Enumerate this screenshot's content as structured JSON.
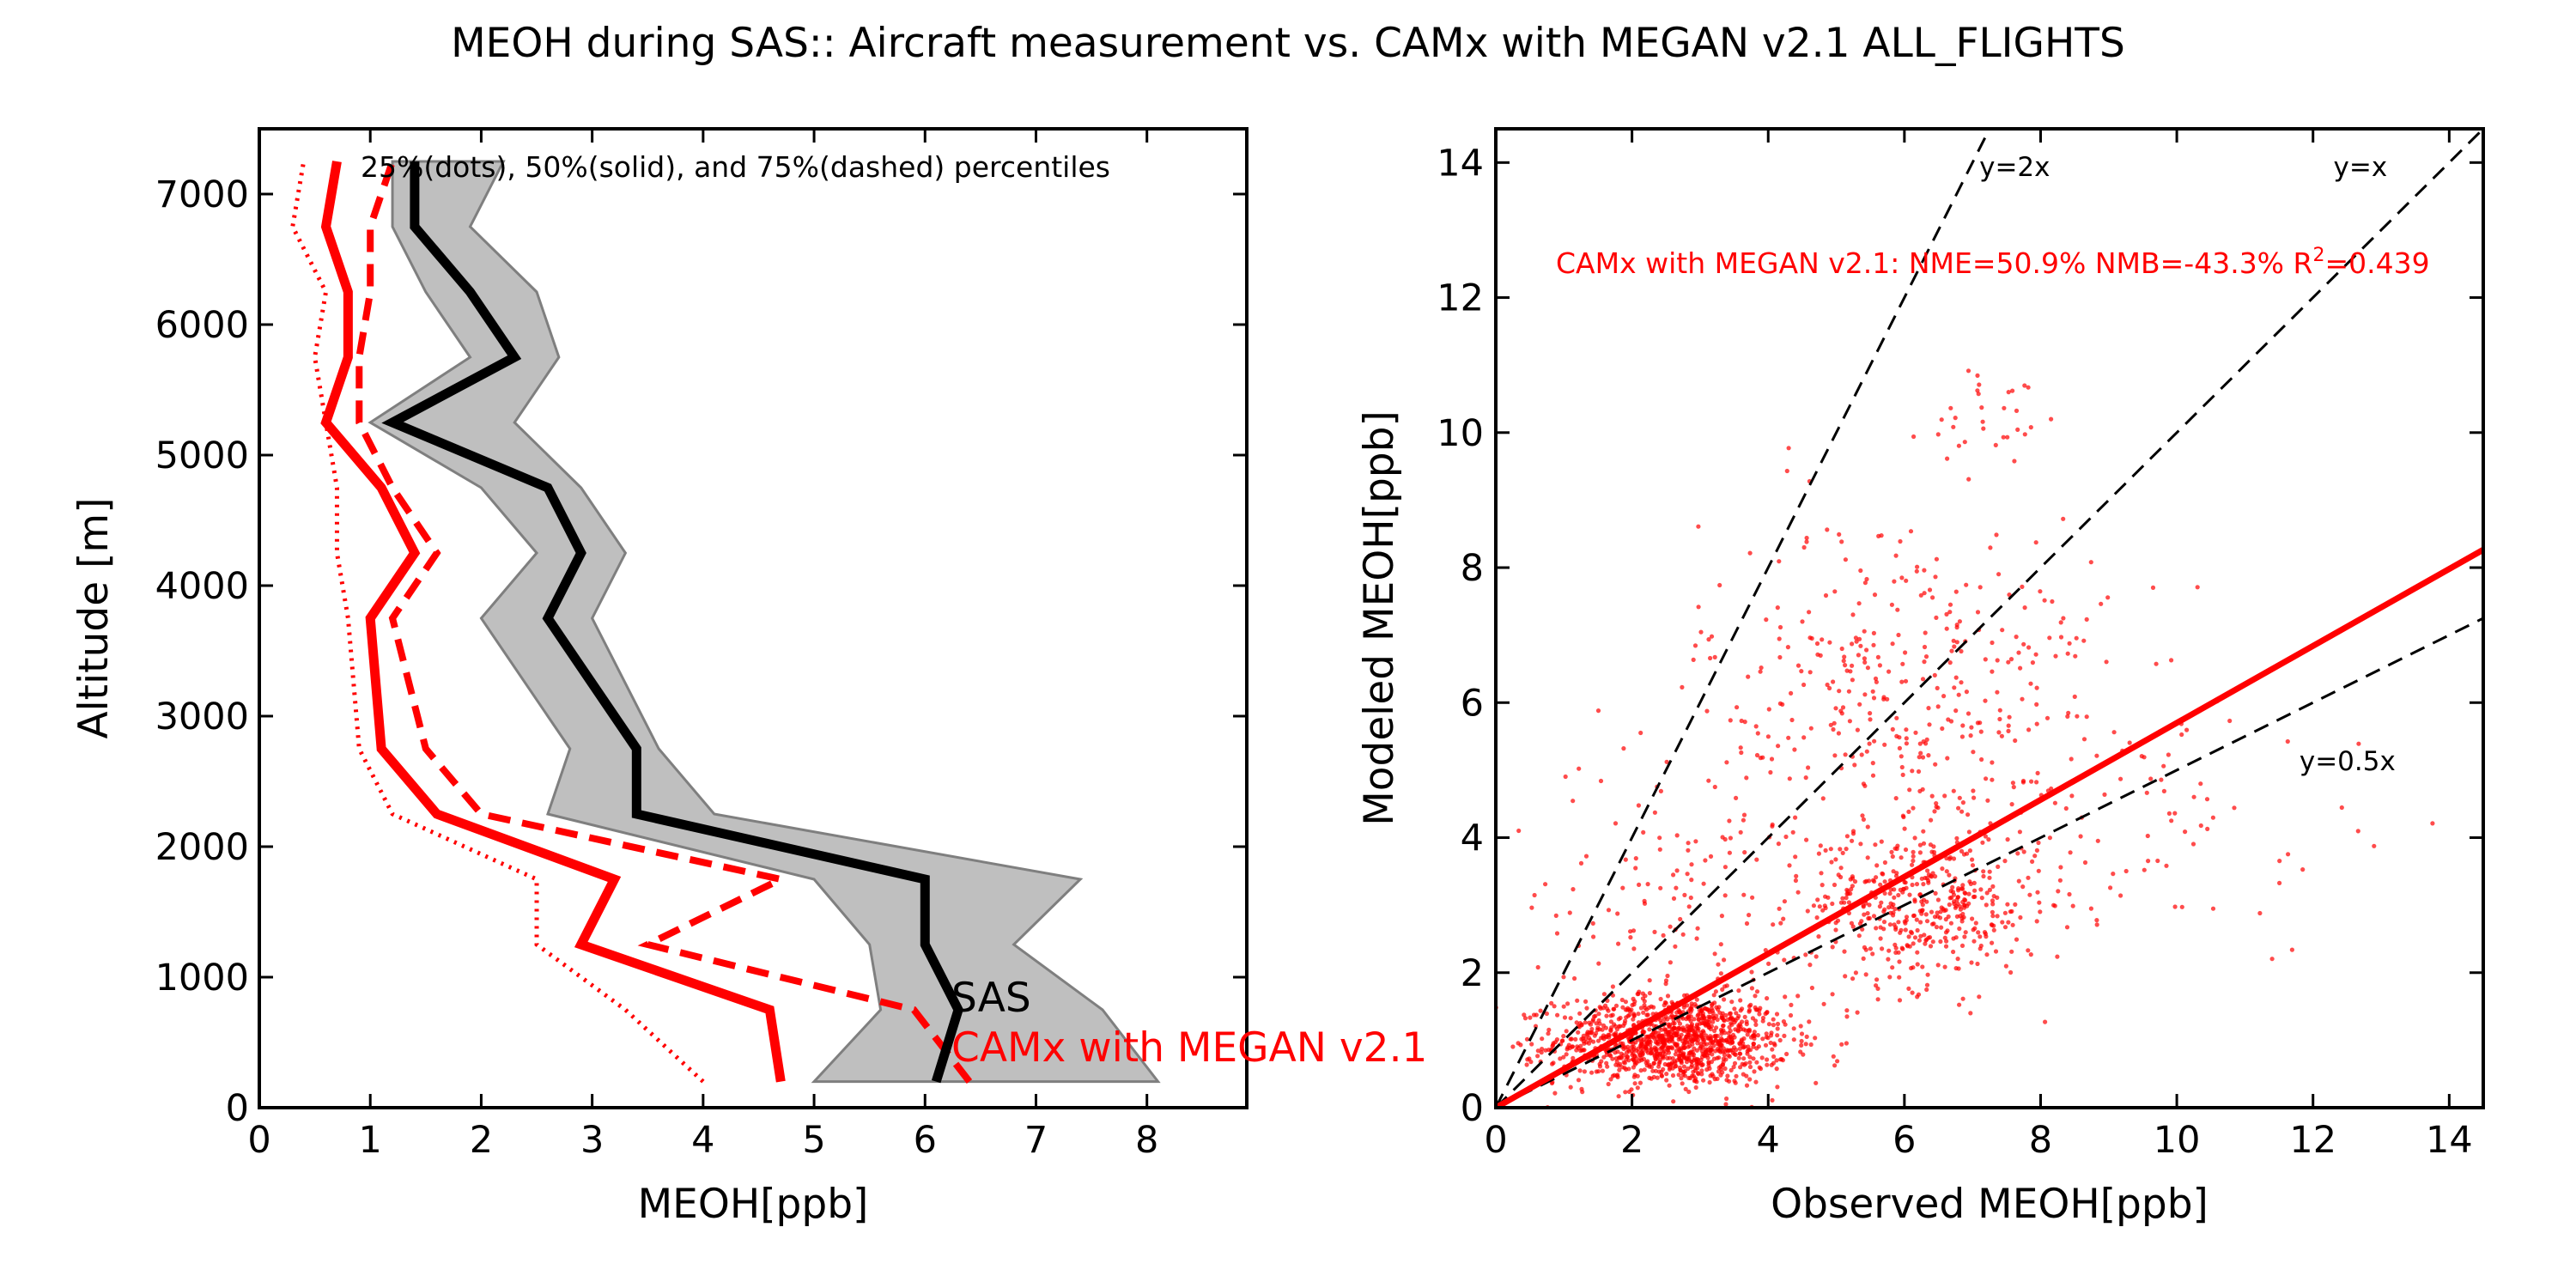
{
  "figure": {
    "title": "MEOH during SAS:: Aircraft measurement vs. CAMx with MEGAN v2.1 ALL_FLIGHTS"
  },
  "colors": {
    "model": "#ff0000",
    "observation": "#000000",
    "obs_band": "#bfbfbf",
    "obs_band_edge": "#7f7f7f",
    "reference_lines": "#000000"
  },
  "chart_data": [
    {
      "type": "line",
      "panel": "left",
      "xlabel": "MEOH[ppb]",
      "ylabel": "Altitude [m]",
      "xlim": [
        0,
        8.9
      ],
      "ylim": [
        0,
        7500
      ],
      "xticks": [
        0,
        1,
        2,
        3,
        4,
        5,
        6,
        7,
        8
      ],
      "yticks": [
        0,
        1000,
        2000,
        3000,
        4000,
        5000,
        6000,
        7000
      ],
      "annotation": "25%(dots), 50%(solid), and 75%(dashed) percentiles",
      "labels": {
        "obs": "SAS",
        "model": "CAMx with MEGAN v2.1"
      },
      "obs_band": {
        "p25": [
          [
            5.0,
            200
          ],
          [
            5.6,
            750
          ],
          [
            5.5,
            1250
          ],
          [
            5.0,
            1750
          ],
          [
            2.6,
            2250
          ],
          [
            2.8,
            2750
          ],
          [
            2.0,
            3750
          ],
          [
            2.5,
            4250
          ],
          [
            2.0,
            4750
          ],
          [
            1.0,
            5250
          ],
          [
            1.9,
            5750
          ],
          [
            1.5,
            6250
          ],
          [
            1.2,
            6750
          ],
          [
            1.2,
            7250
          ]
        ],
        "p75": [
          [
            8.1,
            200
          ],
          [
            7.6,
            750
          ],
          [
            6.8,
            1250
          ],
          [
            7.4,
            1750
          ],
          [
            4.1,
            2250
          ],
          [
            3.6,
            2750
          ],
          [
            3.0,
            3750
          ],
          [
            3.3,
            4250
          ],
          [
            2.9,
            4750
          ],
          [
            2.3,
            5250
          ],
          [
            2.7,
            5750
          ],
          [
            2.5,
            6250
          ],
          [
            1.9,
            6750
          ],
          [
            2.2,
            7250
          ]
        ]
      },
      "obs_median": [
        [
          6.1,
          200
        ],
        [
          6.3,
          750
        ],
        [
          6.0,
          1250
        ],
        [
          6.0,
          1750
        ],
        [
          3.4,
          2250
        ],
        [
          3.4,
          2750
        ],
        [
          2.6,
          3750
        ],
        [
          2.9,
          4250
        ],
        [
          2.6,
          4750
        ],
        [
          1.2,
          5250
        ],
        [
          2.3,
          5750
        ],
        [
          1.9,
          6250
        ],
        [
          1.4,
          6750
        ],
        [
          1.4,
          7250
        ]
      ],
      "model_p25": [
        [
          4.0,
          200
        ],
        [
          3.3,
          750
        ],
        [
          2.5,
          1250
        ],
        [
          2.5,
          1750
        ],
        [
          1.2,
          2250
        ],
        [
          0.9,
          2750
        ],
        [
          0.8,
          3750
        ],
        [
          0.7,
          4250
        ],
        [
          0.7,
          4750
        ],
        [
          0.6,
          5250
        ],
        [
          0.5,
          5750
        ],
        [
          0.6,
          6250
        ],
        [
          0.3,
          6750
        ],
        [
          0.4,
          7250
        ]
      ],
      "model_median": [
        [
          4.7,
          200
        ],
        [
          4.6,
          750
        ],
        [
          2.9,
          1250
        ],
        [
          3.2,
          1750
        ],
        [
          1.6,
          2250
        ],
        [
          1.1,
          2750
        ],
        [
          1.0,
          3750
        ],
        [
          1.4,
          4250
        ],
        [
          1.1,
          4750
        ],
        [
          0.6,
          5250
        ],
        [
          0.8,
          5750
        ],
        [
          0.8,
          6250
        ],
        [
          0.6,
          6750
        ],
        [
          0.7,
          7250
        ]
      ],
      "model_p75": [
        [
          6.4,
          200
        ],
        [
          5.9,
          750
        ],
        [
          3.5,
          1250
        ],
        [
          4.7,
          1750
        ],
        [
          2.0,
          2250
        ],
        [
          1.5,
          2750
        ],
        [
          1.2,
          3750
        ],
        [
          1.6,
          4250
        ],
        [
          1.2,
          4750
        ],
        [
          0.9,
          5250
        ],
        [
          0.9,
          5750
        ],
        [
          1.0,
          6250
        ],
        [
          1.0,
          6750
        ],
        [
          1.2,
          7250
        ]
      ]
    },
    {
      "type": "scatter",
      "panel": "right",
      "xlabel": "Observed MEOH[ppb]",
      "ylabel": "Modeled MEOH[ppb]",
      "xlim": [
        0,
        14.5
      ],
      "ylim": [
        0,
        14.5
      ],
      "xticks": [
        0,
        2,
        4,
        6,
        8,
        10,
        12,
        14
      ],
      "yticks": [
        0,
        2,
        4,
        6,
        8,
        10,
        12,
        14
      ],
      "stats_label": "CAMx with MEGAN v2.1: NME=50.9% NMB=-43.3% R",
      "stats_sup": "2",
      "stats_tail": "=0.439",
      "fit_line": {
        "slope": 0.57,
        "intercept": 0.0
      },
      "reference_lines": [
        {
          "slope": 2.0,
          "label": "y=2x",
          "label_at": [
            7.1,
            13.8
          ]
        },
        {
          "slope": 1.0,
          "label": "y=x",
          "label_at": [
            12.3,
            13.8
          ]
        },
        {
          "slope": 0.5,
          "label": "y=0.5x",
          "label_at": [
            11.8,
            5.0
          ]
        }
      ],
      "clusters": [
        {
          "cx": 2.6,
          "cy": 1.0,
          "sx": 0.85,
          "sy": 0.33,
          "n": 1200
        },
        {
          "cx": 6.3,
          "cy": 3.0,
          "sx": 0.85,
          "sy": 0.6,
          "n": 450
        },
        {
          "cx": 6.0,
          "cy": 6.2,
          "sx": 1.5,
          "sy": 1.3,
          "n": 380
        },
        {
          "cx": 2.7,
          "cy": 2.7,
          "sx": 1.3,
          "sy": 1.2,
          "n": 150
        },
        {
          "cx": 9.5,
          "cy": 4.2,
          "sx": 2.0,
          "sy": 1.0,
          "n": 80
        },
        {
          "cx": 7.4,
          "cy": 10.3,
          "sx": 0.5,
          "sy": 0.45,
          "n": 30
        }
      ]
    }
  ]
}
